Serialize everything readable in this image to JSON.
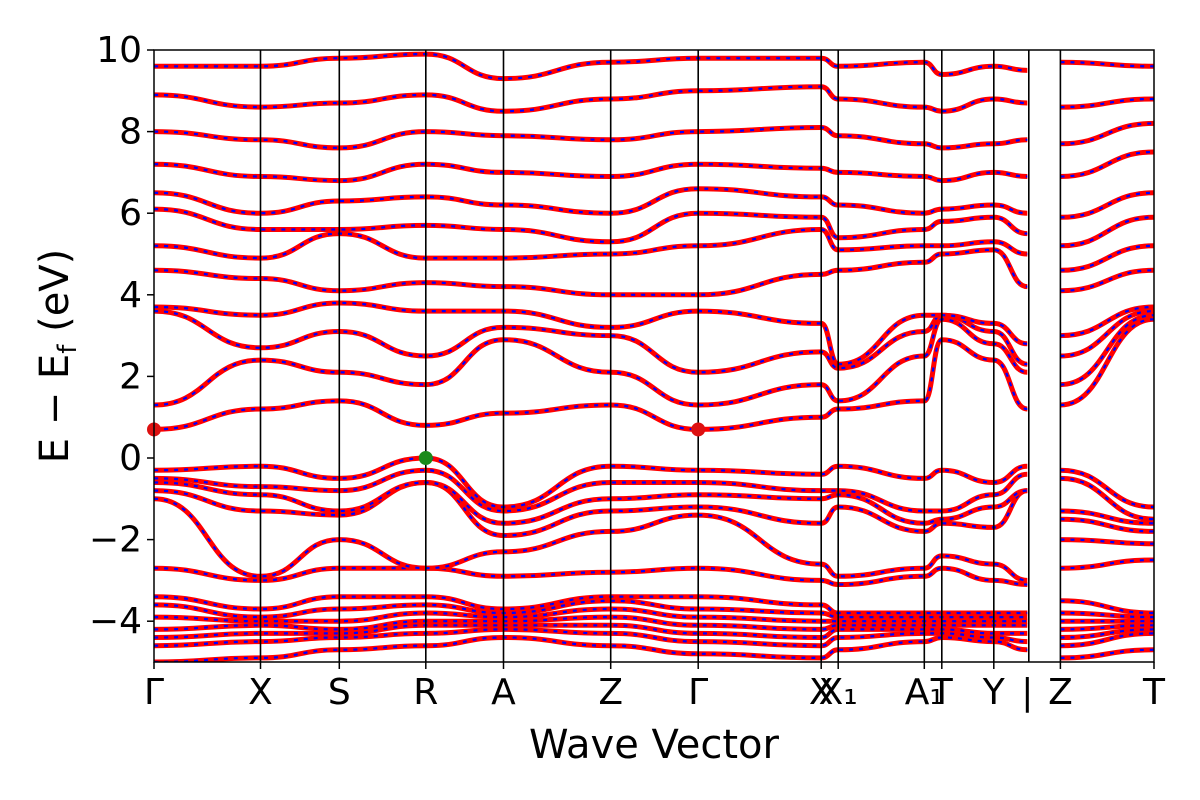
{
  "chart_data": {
    "type": "line",
    "title": "",
    "xlabel": "Wave Vector",
    "ylabel": "E − E_f (eV)",
    "ylabel_parts": {
      "pre": "E − E",
      "sub": "f",
      "post": " (eV)"
    },
    "ylim": [
      -5,
      10
    ],
    "yticks": [
      -4,
      -2,
      0,
      2,
      4,
      6,
      8,
      10
    ],
    "ytick_labels": [
      "−4",
      "−2",
      "0",
      "2",
      "4",
      "6",
      "8",
      "10"
    ],
    "grid": false,
    "legend": "none",
    "x_range": [
      0,
      1
    ],
    "kpoints": [
      {
        "label": "Γ",
        "x": 0.0
      },
      {
        "label": "X",
        "x": 0.1065
      },
      {
        "label": "S",
        "x": 0.1853
      },
      {
        "label": "R",
        "x": 0.2718
      },
      {
        "label": "A",
        "x": 0.3495
      },
      {
        "label": "Z",
        "x": 0.4567
      },
      {
        "label": "Γ",
        "x": 0.5442
      },
      {
        "label": "X",
        "x": 0.6672
      },
      {
        "label": "X₁",
        "x": 0.6842
      },
      {
        "label": "A₁",
        "x": 0.7703
      },
      {
        "label": "T",
        "x": 0.7878
      },
      {
        "label": "Y",
        "x": 0.8398
      },
      {
        "label": "|",
        "x": 0.8733
      },
      {
        "label": "Z",
        "x": 0.9064
      },
      {
        "label": "T",
        "x": 1.0
      }
    ],
    "segment_breaks": [
      0.7878,
      0.8748
    ],
    "series": [
      {
        "style": "solid",
        "color": "#ff0000",
        "bands": [
          {
            "name": "b1",
            "values": [
              -5.0,
              -4.9,
              -4.7,
              -4.6,
              -4.4,
              -4.6,
              -4.8,
              -4.9,
              -4.7,
              -4.5,
              -4.4,
              -4.5,
              -4.7,
              -4.9,
              -4.7
            ]
          },
          {
            "name": "b2",
            "values": [
              -4.6,
              -4.5,
              -4.4,
              -4.3,
              -4.2,
              -4.3,
              -4.5,
              -4.6,
              -4.4,
              -4.3,
              -4.3,
              -4.4,
              -4.5,
              -4.6,
              -4.3
            ]
          },
          {
            "name": "b3",
            "values": [
              -4.4,
              -4.3,
              -4.3,
              -4.1,
              -4.1,
              -4.1,
              -4.3,
              -4.4,
              -4.2,
              -4.2,
              -4.2,
              -4.3,
              -4.3,
              -4.4,
              -4.2
            ]
          },
          {
            "name": "b4",
            "values": [
              -4.2,
              -4.1,
              -4.2,
              -4.0,
              -4.0,
              -3.9,
              -4.1,
              -4.2,
              -4.1,
              -4.1,
              -4.1,
              -4.1,
              -4.1,
              -4.2,
              -4.1
            ]
          },
          {
            "name": "b5",
            "values": [
              -3.9,
              -4.0,
              -4.0,
              -3.8,
              -3.9,
              -3.7,
              -3.9,
              -4.0,
              -4.0,
              -4.0,
              -4.0,
              -4.0,
              -4.0,
              -4.0,
              -4.0
            ]
          },
          {
            "name": "b6",
            "values": [
              -3.6,
              -3.9,
              -3.7,
              -3.6,
              -3.8,
              -3.5,
              -3.7,
              -3.8,
              -3.9,
              -3.9,
              -3.9,
              -3.9,
              -3.9,
              -3.8,
              -3.9
            ]
          },
          {
            "name": "b7",
            "values": [
              -3.4,
              -3.7,
              -3.4,
              -3.4,
              -3.7,
              -3.4,
              -3.4,
              -3.6,
              -3.8,
              -3.8,
              -3.8,
              -3.8,
              -3.8,
              -3.5,
              -3.8
            ]
          },
          {
            "name": "b8",
            "values": [
              -2.7,
              -3.0,
              -2.7,
              -2.7,
              -2.9,
              -2.8,
              -2.7,
              -3.0,
              -3.1,
              -2.9,
              -2.7,
              -3.0,
              -3.1,
              -2.7,
              -2.5
            ]
          },
          {
            "name": "b9",
            "values": [
              -1.0,
              -2.9,
              -2.0,
              -2.7,
              -2.3,
              -1.8,
              -1.4,
              -2.6,
              -2.9,
              -2.7,
              -2.4,
              -2.6,
              -3.0,
              -2.0,
              -2.1
            ]
          },
          {
            "name": "b10",
            "values": [
              -0.8,
              -1.3,
              -1.4,
              -0.6,
              -1.9,
              -1.3,
              -1.2,
              -1.6,
              -1.2,
              -1.8,
              -1.6,
              -1.7,
              -0.8,
              -1.5,
              -1.8
            ]
          },
          {
            "name": "b11",
            "values": [
              -0.6,
              -0.9,
              -1.3,
              -0.6,
              -1.6,
              -1.0,
              -0.9,
              -1.0,
              -0.9,
              -1.6,
              -1.5,
              -1.2,
              -0.8,
              -1.3,
              -1.6
            ]
          },
          {
            "name": "b12",
            "values": [
              -0.5,
              -0.7,
              -0.8,
              -0.3,
              -1.3,
              -0.6,
              -0.6,
              -0.8,
              -0.8,
              -1.3,
              -1.3,
              -0.9,
              -0.4,
              -0.5,
              -1.5
            ]
          },
          {
            "name": "b13",
            "values": [
              -0.3,
              -0.2,
              -0.5,
              0.0,
              -1.2,
              -0.2,
              -0.3,
              -0.4,
              -0.2,
              -0.5,
              -0.3,
              -0.6,
              -0.2,
              -0.3,
              -1.2
            ]
          },
          {
            "name": "b14",
            "values": [
              0.7,
              1.2,
              1.4,
              0.8,
              1.1,
              1.3,
              0.7,
              1.0,
              1.2,
              1.4,
              2.9,
              2.4,
              1.2,
              1.3,
              3.4
            ]
          },
          {
            "name": "b15",
            "values": [
              1.3,
              2.4,
              2.1,
              1.8,
              2.9,
              2.1,
              1.3,
              1.8,
              1.4,
              2.5,
              3.4,
              2.8,
              2.1,
              1.8,
              3.5
            ]
          },
          {
            "name": "b16",
            "values": [
              3.6,
              2.7,
              3.1,
              2.5,
              3.2,
              3.0,
              2.1,
              2.6,
              2.2,
              3.1,
              3.5,
              3.1,
              2.3,
              2.5,
              3.6
            ]
          },
          {
            "name": "b17",
            "values": [
              3.7,
              3.5,
              3.8,
              3.6,
              3.6,
              3.2,
              3.6,
              3.3,
              2.3,
              3.5,
              3.5,
              3.3,
              2.8,
              3.0,
              3.7
            ]
          },
          {
            "name": "b18",
            "values": [
              4.6,
              4.4,
              4.1,
              4.3,
              4.2,
              4.0,
              4.0,
              4.5,
              4.6,
              4.8,
              5.0,
              5.1,
              4.2,
              4.1,
              4.6
            ]
          },
          {
            "name": "b19",
            "values": [
              5.2,
              4.9,
              5.5,
              4.9,
              4.9,
              5.0,
              5.2,
              5.6,
              5.1,
              5.2,
              5.2,
              5.3,
              5.0,
              4.6,
              5.2
            ]
          },
          {
            "name": "b20",
            "values": [
              6.1,
              5.6,
              5.6,
              5.7,
              5.6,
              5.3,
              6.0,
              5.9,
              5.4,
              5.6,
              5.8,
              5.9,
              5.5,
              5.2,
              5.9
            ]
          },
          {
            "name": "b21",
            "values": [
              6.5,
              6.0,
              6.3,
              6.4,
              6.2,
              6.0,
              6.6,
              6.4,
              6.2,
              6.0,
              6.1,
              6.2,
              6.0,
              5.9,
              6.5
            ]
          },
          {
            "name": "b22",
            "values": [
              7.2,
              6.9,
              6.8,
              7.2,
              7.0,
              6.9,
              7.2,
              7.1,
              7.0,
              6.9,
              6.8,
              7.0,
              6.9,
              6.9,
              7.5
            ]
          },
          {
            "name": "b23",
            "values": [
              8.0,
              7.8,
              7.6,
              8.0,
              7.9,
              7.8,
              8.0,
              8.1,
              7.9,
              7.7,
              7.6,
              7.7,
              7.8,
              7.7,
              8.2
            ]
          },
          {
            "name": "b24",
            "values": [
              8.9,
              8.6,
              8.7,
              8.9,
              8.5,
              8.8,
              9.0,
              9.1,
              8.8,
              8.6,
              8.5,
              8.8,
              8.7,
              8.6,
              8.8
            ]
          },
          {
            "name": "b25",
            "values": [
              9.6,
              9.6,
              9.8,
              9.9,
              9.3,
              9.7,
              9.8,
              9.8,
              9.6,
              9.7,
              9.4,
              9.6,
              9.5,
              9.7,
              9.6
            ]
          }
        ]
      },
      {
        "style": "dashed",
        "color": "#0000ff",
        "same_as": "solid"
      }
    ],
    "markers": [
      {
        "x": 0.0,
        "y": 0.7,
        "color": "#dd1111"
      },
      {
        "x": 0.5442,
        "y": 0.7,
        "color": "#dd1111"
      },
      {
        "x": 0.2718,
        "y": 0.0,
        "color": "#1a8a1a"
      }
    ]
  }
}
